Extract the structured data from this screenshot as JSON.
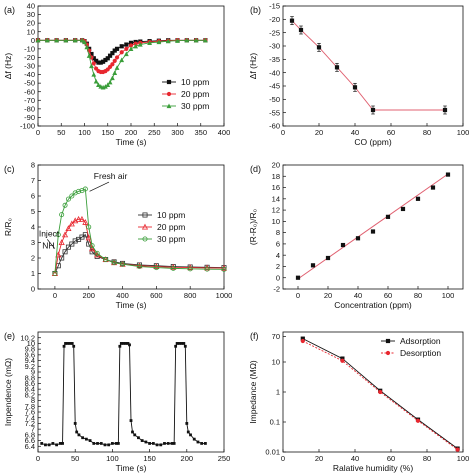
{
  "chart_data": [
    {
      "panel": "(a)",
      "type": "line",
      "xlabel": "Time (s)",
      "ylabel": "Δf (Hz)",
      "xlim": [
        0,
        400
      ],
      "ylim": [
        -100,
        40
      ],
      "xticks": [
        0,
        50,
        100,
        150,
        200,
        250,
        300,
        350,
        400
      ],
      "yticks": [
        -100,
        -90,
        -80,
        -70,
        -60,
        -50,
        -40,
        -30,
        -20,
        -10,
        0,
        10,
        20,
        30,
        40
      ],
      "legend_position": "lower-right",
      "series": [
        {
          "name": "10 ppm",
          "color": "#111111",
          "marker": "square",
          "x": [
            0,
            20,
            40,
            60,
            80,
            95,
            100,
            105,
            110,
            115,
            120,
            125,
            130,
            135,
            140,
            145,
            150,
            155,
            160,
            165,
            170,
            180,
            190,
            200,
            210,
            220,
            240,
            260,
            280,
            300,
            320,
            340,
            360
          ],
          "y": [
            0,
            0,
            0,
            0,
            0,
            0,
            -1,
            -4,
            -10,
            -16,
            -21,
            -24,
            -26,
            -26,
            -25,
            -23,
            -21,
            -18,
            -15,
            -12,
            -10,
            -7,
            -5,
            -3,
            -2,
            -1.5,
            -1,
            -0.5,
            0,
            0,
            0,
            0,
            0
          ]
        },
        {
          "name": "20 ppm",
          "color": "#e8272f",
          "marker": "circle",
          "x": [
            0,
            20,
            40,
            60,
            80,
            95,
            100,
            105,
            110,
            115,
            120,
            125,
            130,
            135,
            140,
            145,
            150,
            155,
            160,
            165,
            170,
            180,
            190,
            200,
            210,
            220,
            240,
            260,
            280,
            300,
            320,
            340,
            360
          ],
          "y": [
            0,
            0,
            0,
            0,
            0,
            0,
            -1,
            -5,
            -12,
            -20,
            -27,
            -33,
            -36,
            -37,
            -37,
            -36,
            -34,
            -31,
            -28,
            -24,
            -20,
            -14,
            -10,
            -6,
            -4,
            -3,
            -2,
            -1,
            -0.5,
            0,
            0,
            0,
            0
          ]
        },
        {
          "name": "30 ppm",
          "color": "#3a9e3a",
          "marker": "triangle",
          "x": [
            0,
            20,
            40,
            60,
            80,
            95,
            100,
            105,
            110,
            115,
            120,
            125,
            130,
            135,
            140,
            145,
            150,
            155,
            160,
            165,
            170,
            180,
            190,
            200,
            210,
            220,
            240,
            260,
            280,
            300,
            320,
            340,
            360
          ],
          "y": [
            0,
            0,
            0,
            0,
            0,
            0,
            -2,
            -8,
            -18,
            -30,
            -40,
            -48,
            -52,
            -54,
            -55,
            -54,
            -52,
            -49,
            -44,
            -38,
            -32,
            -23,
            -16,
            -10,
            -7,
            -5,
            -3,
            -2,
            -1,
            -0.5,
            0,
            0,
            0
          ]
        }
      ]
    },
    {
      "panel": "(b)",
      "type": "scatter",
      "xlabel": "CO (ppm)",
      "ylabel": "Δf (Hz)",
      "xlim": [
        0,
        100
      ],
      "ylim": [
        -60,
        -15
      ],
      "xticks": [
        0,
        20,
        40,
        60,
        80,
        100
      ],
      "yticks": [
        -60,
        -55,
        -50,
        -45,
        -40,
        -35,
        -30,
        -25,
        -20,
        -15
      ],
      "series": [
        {
          "color": "#e06070",
          "x": [
            5,
            10,
            20,
            30,
            40,
            50,
            90
          ],
          "y": [
            -20.5,
            -24,
            -30.5,
            -38,
            -45.5,
            -54,
            -54
          ],
          "err": [
            1.5,
            1.5,
            1.5,
            1.5,
            1.5,
            1.5,
            1.5
          ]
        }
      ]
    },
    {
      "panel": "(c)",
      "type": "line",
      "xlabel": "Time (s)",
      "ylabel": "R/R₀",
      "xlim": [
        -100,
        1000
      ],
      "ylim": [
        0,
        8
      ],
      "xticks": [
        0,
        200,
        400,
        600,
        800,
        1000
      ],
      "yticks": [
        0,
        1,
        2,
        3,
        4,
        5,
        6,
        7,
        8
      ],
      "legend_position": "right",
      "annotations": [
        {
          "text": "Fresh air",
          "x": 230,
          "y": 7.1
        },
        {
          "text": "Inject",
          "x": -95,
          "y": 3.4
        },
        {
          "text": "NH",
          "x": -75,
          "y": 2.6
        }
      ],
      "series": [
        {
          "name": "10 ppm",
          "color": "#333333",
          "marker": "square-open",
          "x": [
            0,
            20,
            40,
            60,
            80,
            100,
            120,
            140,
            160,
            180,
            200,
            220,
            250,
            300,
            350,
            400,
            500,
            600,
            700,
            800,
            900,
            1000
          ],
          "y": [
            1.0,
            1.5,
            2.0,
            2.4,
            2.7,
            2.9,
            3.1,
            3.2,
            3.35,
            3.5,
            2.9,
            2.4,
            2.1,
            1.9,
            1.75,
            1.65,
            1.55,
            1.5,
            1.45,
            1.42,
            1.4,
            1.38
          ]
        },
        {
          "name": "20 ppm",
          "color": "#e8272f",
          "marker": "triangle-open",
          "x": [
            0,
            20,
            40,
            60,
            80,
            100,
            120,
            140,
            160,
            180,
            200,
            220,
            250,
            300,
            350,
            400,
            500,
            600,
            700,
            800,
            900,
            1000
          ],
          "y": [
            1.0,
            2.2,
            3.0,
            3.5,
            3.9,
            4.2,
            4.4,
            4.5,
            4.5,
            4.3,
            3.3,
            2.6,
            2.2,
            1.9,
            1.7,
            1.6,
            1.5,
            1.45,
            1.4,
            1.38,
            1.36,
            1.35
          ]
        },
        {
          "name": "30 ppm",
          "color": "#3a9e3a",
          "marker": "circle-open",
          "x": [
            0,
            20,
            40,
            60,
            80,
            100,
            120,
            140,
            160,
            180,
            200,
            220,
            250,
            300,
            350,
            400,
            500,
            600,
            700,
            800,
            900,
            1000
          ],
          "y": [
            1.0,
            3.5,
            4.8,
            5.4,
            5.8,
            6.0,
            6.2,
            6.3,
            6.35,
            6.45,
            4.0,
            2.8,
            2.3,
            1.9,
            1.7,
            1.6,
            1.45,
            1.38,
            1.33,
            1.3,
            1.28,
            1.27
          ]
        }
      ],
      "legend_entries": [
        "10 ppm",
        "20 ppm",
        "30 ppm"
      ]
    },
    {
      "panel": "(d)",
      "type": "scatter",
      "xlabel": "Concentration (ppm)",
      "ylabel": "(R-R₀)/R₀",
      "xlim": [
        -10,
        110
      ],
      "ylim": [
        -2,
        20
      ],
      "xticks": [
        0,
        20,
        40,
        60,
        80,
        100
      ],
      "yticks": [
        -2,
        0,
        2,
        4,
        6,
        8,
        10,
        12,
        14,
        16,
        18,
        20
      ],
      "fit_line": {
        "x": [
          0,
          100
        ],
        "y": [
          -0.2,
          18.4
        ],
        "color": "#e06070"
      },
      "series": [
        {
          "color": "#111111",
          "x": [
            0,
            10,
            20,
            30,
            40,
            50,
            60,
            70,
            80,
            90,
            100
          ],
          "y": [
            0,
            2.2,
            3.5,
            5.8,
            7.0,
            8.2,
            10.8,
            12.2,
            14.0,
            16.0,
            18.3
          ]
        }
      ]
    },
    {
      "panel": "(e)",
      "type": "line",
      "xlabel": "Time (s)",
      "ylabel": "Impendence (mΩ)",
      "xlim": [
        0,
        250
      ],
      "ylim": [
        6.2,
        10.4
      ],
      "xticks": [
        0,
        50,
        100,
        150,
        200,
        250
      ],
      "yticks": [
        6.4,
        6.6,
        6.8,
        7.0,
        7.2,
        7.4,
        7.6,
        7.8,
        8.0,
        8.2,
        8.4,
        8.6,
        8.8,
        9.0,
        9.2,
        9.4,
        9.6,
        9.8,
        10.0,
        10.2
      ],
      "series": [
        {
          "color": "#111111",
          "x": [
            5,
            10,
            15,
            20,
            25,
            30,
            33,
            35,
            37,
            40,
            43,
            46,
            48,
            50,
            52,
            55,
            60,
            65,
            70,
            75,
            80,
            85,
            90,
            95,
            100,
            105,
            108,
            110,
            112,
            115,
            118,
            121,
            123,
            125,
            127,
            130,
            135,
            140,
            145,
            150,
            155,
            160,
            165,
            170,
            175,
            180,
            183,
            185,
            187,
            190,
            193,
            196,
            198,
            200,
            202,
            205,
            210,
            215,
            220,
            225
          ],
          "y": [
            6.5,
            6.45,
            6.45,
            6.5,
            6.45,
            6.5,
            6.5,
            9.9,
            10.0,
            10.0,
            10.0,
            10.0,
            9.9,
            7.2,
            6.9,
            6.8,
            6.7,
            6.65,
            6.6,
            6.5,
            6.5,
            6.5,
            6.45,
            6.45,
            6.5,
            6.5,
            6.5,
            9.9,
            10.0,
            10.0,
            10.0,
            10.0,
            9.95,
            7.3,
            6.9,
            6.8,
            6.7,
            6.6,
            6.55,
            6.5,
            6.5,
            6.45,
            6.45,
            6.5,
            6.5,
            6.5,
            6.5,
            9.9,
            10.0,
            10.0,
            10.0,
            10.0,
            9.9,
            7.2,
            6.9,
            6.8,
            6.65,
            6.55,
            6.5,
            6.5
          ]
        }
      ]
    },
    {
      "panel": "(f)",
      "type": "line",
      "xlabel": "Ralative humidity (%)",
      "ylabel": "Impedance (MΩ)",
      "yscale": "log",
      "xlim": [
        0,
        100
      ],
      "ylim": [
        0.01,
        100
      ],
      "xticks": [
        0,
        20,
        40,
        60,
        80,
        100
      ],
      "yticks": [
        0.01,
        0.1,
        1,
        10,
        70
      ],
      "ytick_labels": [
        "0.01",
        "0.1",
        "1",
        "10",
        "70"
      ],
      "legend_position": "top-right",
      "series": [
        {
          "name": "Adsorption",
          "color": "#111111",
          "marker": "square",
          "x": [
            11,
            33,
            54,
            75,
            97
          ],
          "y": [
            60,
            13,
            1.1,
            0.12,
            0.013
          ]
        },
        {
          "name": "Desorption",
          "color": "#e8272f",
          "marker": "circle",
          "x": [
            11,
            33,
            54,
            75,
            97
          ],
          "y": [
            50,
            11,
            1.0,
            0.11,
            0.012
          ]
        }
      ]
    }
  ]
}
